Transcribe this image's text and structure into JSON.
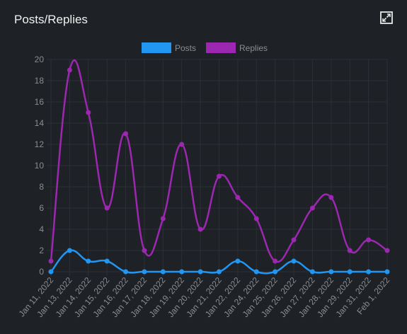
{
  "card": {
    "title": "Posts/Replies",
    "expand_icon": "expand-icon"
  },
  "chart_data": {
    "type": "line",
    "title": "",
    "xlabel": "",
    "ylabel": "",
    "ylim": [
      0,
      20
    ],
    "yticks": [
      0,
      2,
      4,
      6,
      8,
      10,
      12,
      14,
      16,
      18,
      20
    ],
    "grid": true,
    "legend": "top-center",
    "categories": [
      "Jan 11, 2022",
      "Jan 13, 2022",
      "Jan 14, 2022",
      "Jan 15, 2022",
      "Jan 16, 2022",
      "Jan 17, 2022",
      "Jan 18, 2022",
      "Jan 19, 2022",
      "Jan 20, 2022",
      "Jan 21, 2022",
      "Jan 22, 2022",
      "Jan 24, 2022",
      "Jan 25, 2022",
      "Jan 26, 2022",
      "Jan 27, 2022",
      "Jan 28, 2022",
      "Jan 29, 2022",
      "Jan 31, 2022",
      "Feb 1, 2022"
    ],
    "series": [
      {
        "name": "Posts",
        "color": "#2196f3",
        "values": [
          0,
          2,
          1,
          1,
          0,
          0,
          0,
          0,
          0,
          0,
          1,
          0,
          0,
          1,
          0,
          0,
          0,
          0,
          0
        ]
      },
      {
        "name": "Replies",
        "color": "#9c27b0",
        "values": [
          1,
          19,
          15,
          6,
          13,
          2,
          5,
          12,
          4,
          9,
          7,
          5,
          1,
          3,
          6,
          7,
          2,
          3,
          2
        ]
      }
    ]
  }
}
